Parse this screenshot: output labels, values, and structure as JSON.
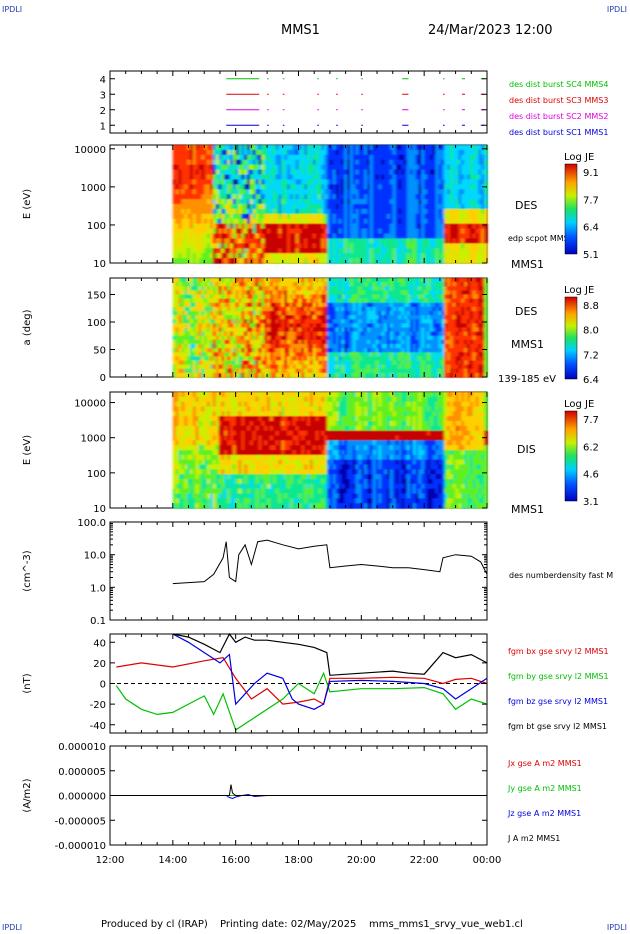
{
  "header": {
    "corner_label": "IPDLI",
    "spacecraft": "MMS1",
    "datetime": "24/Mar/2023 12:00"
  },
  "footer": {
    "produced_by": "Produced by cl (IRAP)",
    "printing_date": "Printing date: 02/May/2025",
    "script": "mms_mms1_srvy_vue_web1.cl"
  },
  "colors": {
    "black": "#000000",
    "red": "#e00000",
    "green": "#00c000",
    "blue": "#0000e0",
    "magenta": "#e000e0"
  },
  "chart_data": [
    {
      "type": "line",
      "panel": "burst-availability",
      "ylim": [
        0.5,
        4.5
      ],
      "y_ticks": [
        "1",
        "2",
        "3",
        "4"
      ],
      "series": [
        {
          "name": "des dist burst SC1 MMS1",
          "color": "#0000e0",
          "level": 1
        },
        {
          "name": "des dist burst SC2 MMS2",
          "color": "#e000e0",
          "level": 2
        },
        {
          "name": "des dist burst SC3 MMS3",
          "color": "#e00000",
          "level": 3
        },
        {
          "name": "des dist burst SC4 MMS4",
          "color": "#00c000",
          "level": 4
        }
      ],
      "segments": [
        [
          15.7,
          16.75
        ],
        [
          17.0,
          17.05
        ],
        [
          17.5,
          17.55
        ],
        [
          18.6,
          18.65
        ],
        [
          19.2,
          19.25
        ],
        [
          20.0,
          20.05
        ],
        [
          21.3,
          21.5
        ],
        [
          22.6,
          22.65
        ],
        [
          23.2,
          23.3
        ],
        [
          23.8,
          23.9
        ]
      ]
    },
    {
      "type": "heatmap",
      "panel": "des-energy",
      "ylabel": "E (eV)",
      "y_ticks": [
        "10",
        "100",
        "1000",
        "10000"
      ],
      "label": "DES",
      "sublabel": "MMS1",
      "note": "edp scpot MMS1",
      "colorbar": {
        "title": "Log JE",
        "ticks": [
          "9.1",
          "7.7",
          "6.4",
          "5.1"
        ]
      }
    },
    {
      "type": "heatmap",
      "panel": "des-pitch-angle",
      "ylabel": "a (deg)",
      "y_ticks": [
        "0",
        "50",
        "100",
        "150"
      ],
      "label": "DES",
      "sublabel": "MMS1",
      "note": "139-185 eV",
      "colorbar": {
        "title": "Log JE",
        "ticks": [
          "8.8",
          "8.0",
          "7.2",
          "6.4"
        ]
      }
    },
    {
      "type": "heatmap",
      "panel": "dis-energy",
      "ylabel": "E (eV)",
      "y_ticks": [
        "10",
        "100",
        "1000",
        "10000"
      ],
      "label": "DIS",
      "sublabel": "MMS1",
      "colorbar": {
        "title": "Log JE",
        "ticks": [
          "7.7",
          "6.2",
          "4.6",
          "3.1"
        ]
      }
    },
    {
      "type": "line",
      "panel": "density",
      "ylabel": "(cm^-3)",
      "y_ticks": [
        "0.1",
        "1.0",
        "10.0",
        "100.0"
      ],
      "series": [
        {
          "name": "des numberdensity fast M",
          "color": "#000000",
          "x": [
            14.0,
            14.5,
            15.0,
            15.3,
            15.6,
            15.7,
            15.8,
            16.0,
            16.1,
            16.3,
            16.5,
            16.7,
            17.0,
            17.5,
            18.0,
            18.5,
            18.9,
            19.0,
            19.5,
            20.0,
            20.5,
            21.0,
            21.5,
            22.0,
            22.5,
            22.6,
            23.0,
            23.5,
            23.8,
            24.0
          ],
          "y": [
            1.3,
            1.4,
            1.5,
            2.5,
            8.0,
            25.0,
            2.0,
            1.5,
            10.0,
            20.0,
            5.0,
            25.0,
            28.0,
            20.0,
            15.0,
            18.0,
            20.0,
            4.0,
            4.5,
            5.0,
            4.5,
            4.0,
            4.0,
            3.5,
            3.0,
            8.0,
            10.0,
            9.0,
            6.0,
            2.5
          ]
        }
      ]
    },
    {
      "type": "line",
      "panel": "magnetic-field",
      "ylabel": "(nT)",
      "y_ticks": [
        "-40",
        "-20",
        "0",
        "20",
        "40"
      ],
      "ylim": [
        -48,
        48
      ],
      "series": [
        {
          "name": "fgm bx gse srvy l2 MMS1",
          "color": "#e00000",
          "x": [
            12.2,
            13.0,
            14.0,
            15.0,
            15.6,
            16.0,
            16.5,
            17.0,
            17.5,
            18.0,
            18.5,
            18.8,
            19.0,
            20.0,
            21.0,
            22.0,
            22.6,
            23.0,
            23.5,
            24.0
          ],
          "y": [
            16,
            20,
            16,
            22,
            25,
            5,
            -15,
            -5,
            -20,
            -18,
            -15,
            -20,
            5,
            5,
            6,
            5,
            0,
            4,
            5,
            0
          ]
        },
        {
          "name": "fgm by gse srvy l2 MMS1",
          "color": "#00c000",
          "x": [
            12.2,
            12.5,
            13.0,
            13.5,
            14.0,
            14.5,
            15.0,
            15.3,
            15.6,
            16.0,
            16.5,
            17.0,
            17.5,
            18.0,
            18.5,
            18.8,
            19.0,
            20.0,
            21.0,
            22.0,
            22.6,
            23.0,
            23.5,
            24.0
          ],
          "y": [
            -2,
            -15,
            -25,
            -30,
            -28,
            -20,
            -12,
            -30,
            -10,
            -45,
            -35,
            -25,
            -15,
            0,
            -10,
            10,
            -8,
            -5,
            -5,
            -4,
            -10,
            -25,
            -15,
            -20
          ]
        },
        {
          "name": "fgm bz gse srvy l2 MMS1",
          "color": "#0000e0",
          "x": [
            14.0,
            14.5,
            15.0,
            15.5,
            15.8,
            16.0,
            16.3,
            16.6,
            17.0,
            17.5,
            17.8,
            18.0,
            18.5,
            18.8,
            19.0,
            20.0,
            21.0,
            22.0,
            22.6,
            23.0,
            23.5,
            24.0
          ],
          "y": [
            48,
            40,
            30,
            20,
            28,
            -20,
            -10,
            0,
            10,
            5,
            -15,
            -20,
            -25,
            -20,
            2,
            3,
            2,
            0,
            -5,
            -15,
            -5,
            5
          ]
        },
        {
          "name": "fgm bt gse srvy l2 MMS1",
          "color": "#000000",
          "x": [
            14.0,
            14.5,
            15.0,
            15.5,
            15.8,
            16.0,
            16.3,
            16.6,
            17.0,
            17.5,
            18.0,
            18.5,
            18.9,
            19.0,
            20.0,
            21.0,
            21.5,
            22.0,
            22.6,
            23.0,
            23.5,
            24.0
          ],
          "y": [
            48,
            45,
            38,
            30,
            48,
            40,
            45,
            42,
            42,
            40,
            38,
            35,
            30,
            8,
            10,
            12,
            10,
            9,
            30,
            25,
            28,
            20
          ]
        }
      ],
      "reference_line": 0
    },
    {
      "type": "line",
      "panel": "current-density",
      "ylabel": "(A/m2)",
      "y_ticks": [
        "-0.000010",
        "-0.000005",
        "0.000000",
        "0.000005",
        "0.000010"
      ],
      "ylim": [
        -1e-05,
        1e-05
      ],
      "series": [
        {
          "name": "Jx gse A m2 MMS1",
          "color": "#e00000",
          "x": [
            12.0,
            24.0
          ],
          "y": [
            0,
            0
          ]
        },
        {
          "name": "Jy gse A m2 MMS1",
          "color": "#00c000",
          "x": [
            12.0,
            24.0
          ],
          "y": [
            0,
            0
          ]
        },
        {
          "name": "Jz gse A m2 MMS1",
          "color": "#0000e0",
          "x": [
            12.0,
            15.7,
            15.8,
            15.9,
            16.0,
            16.2,
            16.4,
            16.6,
            17.0,
            19.0,
            24.0
          ],
          "y": [
            0,
            0,
            -4e-07,
            -6e-07,
            -3e-07,
            0,
            2e-07,
            -2e-07,
            0,
            0,
            0
          ]
        },
        {
          "name": "J A m2 MMS1",
          "color": "#000000",
          "x": [
            12.0,
            15.8,
            15.85,
            15.9,
            16.0,
            24.0
          ],
          "y": [
            0,
            0,
            2.2e-06,
            5e-07,
            0,
            0
          ]
        }
      ]
    }
  ],
  "x_axis": {
    "ticks": [
      "12:00",
      "14:00",
      "16:00",
      "18:00",
      "20:00",
      "22:00",
      "00:00"
    ]
  }
}
